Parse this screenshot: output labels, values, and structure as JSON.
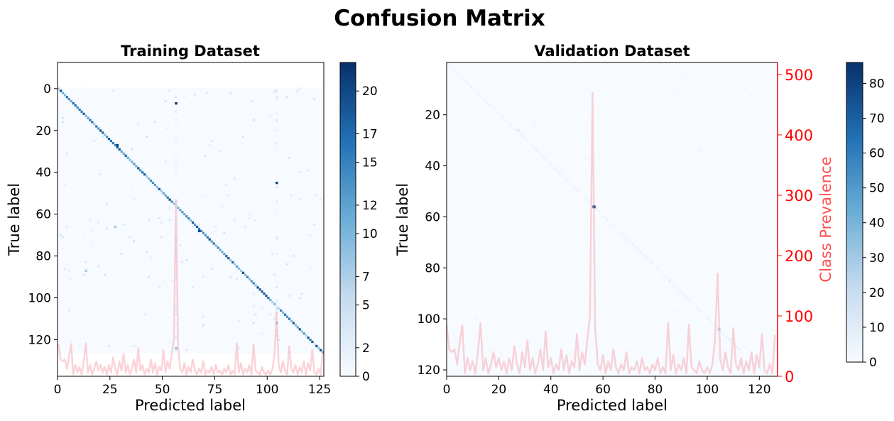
{
  "title": "Confusion Matrix",
  "colors": {
    "cmap_low": "#f7fbff",
    "cmap_high": "#08306b",
    "prevalence_line": "#f7a8b2",
    "prevalence_axis": "#ff0000"
  },
  "chart_data": [
    {
      "type": "heatmap",
      "title": "Training Dataset",
      "xlabel": "Predicted label",
      "ylabel": "True label",
      "n_classes": 127,
      "xlim": [
        0,
        127
      ],
      "ylim": [
        138,
        -12
      ],
      "xticks": [
        0,
        25,
        50,
        75,
        100,
        125
      ],
      "yticks": [
        0,
        20,
        40,
        60,
        80,
        100,
        120
      ],
      "colorbar": {
        "min": 0,
        "max": 22,
        "ticks": [
          0,
          2,
          5,
          7,
          10,
          12,
          15,
          17,
          20
        ]
      },
      "notable_cells": [
        {
          "true": 7,
          "pred": 56,
          "value": 22
        },
        {
          "true": 27,
          "pred": 28,
          "value": 21
        },
        {
          "true": 45,
          "pred": 104,
          "value": 21
        },
        {
          "true": 68,
          "pred": 67,
          "value": 20
        },
        {
          "true": 87,
          "pred": 13,
          "value": 8
        },
        {
          "true": 66,
          "pred": 27,
          "value": 8
        },
        {
          "true": 124,
          "pred": 56,
          "value": 9
        },
        {
          "true": 112,
          "pred": 104,
          "value": 10
        }
      ],
      "prevalence_overlay": true
    },
    {
      "type": "heatmap",
      "title": "Validation Dataset",
      "xlabel": "Predicted label",
      "ylabel": "True label",
      "secondary_ylabel": "Class Prevalence",
      "n_classes": 123,
      "xlim": [
        0,
        127
      ],
      "ylim": [
        123,
        0
      ],
      "xticks": [
        0,
        20,
        40,
        60,
        80,
        100,
        120
      ],
      "yticks": [
        20,
        40,
        60,
        80,
        100,
        120
      ],
      "secondary_yticks": [
        0,
        100,
        200,
        300,
        400,
        500
      ],
      "secondary_ylim": [
        0,
        520
      ],
      "colorbar": {
        "min": 0,
        "max": 86,
        "ticks": [
          0,
          10,
          20,
          30,
          40,
          50,
          60,
          70,
          80
        ]
      },
      "notable_cells": [
        {
          "true": 56,
          "pred": 56,
          "value": 86
        },
        {
          "true": 104,
          "pred": 104,
          "value": 25
        },
        {
          "true": 26,
          "pred": 27,
          "value": 8
        },
        {
          "true": 85,
          "pred": 85,
          "value": 8
        }
      ],
      "prevalence": [
        {
          "x": 0,
          "y": 85
        },
        {
          "x": 1,
          "y": 45
        },
        {
          "x": 2,
          "y": 40
        },
        {
          "x": 3,
          "y": 45
        },
        {
          "x": 4,
          "y": 20
        },
        {
          "x": 5,
          "y": 55
        },
        {
          "x": 6,
          "y": 85
        },
        {
          "x": 7,
          "y": 5
        },
        {
          "x": 8,
          "y": 30
        },
        {
          "x": 9,
          "y": 10
        },
        {
          "x": 10,
          "y": 25
        },
        {
          "x": 11,
          "y": 5
        },
        {
          "x": 12,
          "y": 40
        },
        {
          "x": 13,
          "y": 88
        },
        {
          "x": 14,
          "y": 10
        },
        {
          "x": 15,
          "y": 30
        },
        {
          "x": 16,
          "y": 5
        },
        {
          "x": 17,
          "y": 20
        },
        {
          "x": 18,
          "y": 40
        },
        {
          "x": 19,
          "y": 15
        },
        {
          "x": 20,
          "y": 30
        },
        {
          "x": 21,
          "y": 10
        },
        {
          "x": 22,
          "y": 25
        },
        {
          "x": 23,
          "y": 5
        },
        {
          "x": 24,
          "y": 30
        },
        {
          "x": 25,
          "y": 10
        },
        {
          "x": 26,
          "y": 50
        },
        {
          "x": 27,
          "y": 20
        },
        {
          "x": 28,
          "y": 5
        },
        {
          "x": 29,
          "y": 40
        },
        {
          "x": 30,
          "y": 15
        },
        {
          "x": 31,
          "y": 60
        },
        {
          "x": 32,
          "y": 10
        },
        {
          "x": 33,
          "y": 30
        },
        {
          "x": 34,
          "y": 5
        },
        {
          "x": 35,
          "y": 20
        },
        {
          "x": 36,
          "y": 45
        },
        {
          "x": 37,
          "y": 10
        },
        {
          "x": 38,
          "y": 75
        },
        {
          "x": 39,
          "y": 15
        },
        {
          "x": 40,
          "y": 30
        },
        {
          "x": 41,
          "y": 5
        },
        {
          "x": 42,
          "y": 20
        },
        {
          "x": 43,
          "y": 10
        },
        {
          "x": 44,
          "y": 45
        },
        {
          "x": 45,
          "y": 10
        },
        {
          "x": 46,
          "y": 35
        },
        {
          "x": 47,
          "y": 5
        },
        {
          "x": 48,
          "y": 25
        },
        {
          "x": 49,
          "y": 15
        },
        {
          "x": 50,
          "y": 70
        },
        {
          "x": 51,
          "y": 10
        },
        {
          "x": 52,
          "y": 40
        },
        {
          "x": 53,
          "y": 20
        },
        {
          "x": 54,
          "y": 60
        },
        {
          "x": 55,
          "y": 100
        },
        {
          "x": 56,
          "y": 470
        },
        {
          "x": 57,
          "y": 80
        },
        {
          "x": 58,
          "y": 20
        },
        {
          "x": 59,
          "y": 10
        },
        {
          "x": 60,
          "y": 35
        },
        {
          "x": 61,
          "y": 5
        },
        {
          "x": 62,
          "y": 25
        },
        {
          "x": 63,
          "y": 10
        },
        {
          "x": 64,
          "y": 45
        },
        {
          "x": 65,
          "y": 15
        },
        {
          "x": 66,
          "y": 5
        },
        {
          "x": 67,
          "y": 20
        },
        {
          "x": 68,
          "y": 10
        },
        {
          "x": 69,
          "y": 40
        },
        {
          "x": 70,
          "y": 5
        },
        {
          "x": 71,
          "y": 15
        },
        {
          "x": 72,
          "y": 10
        },
        {
          "x": 73,
          "y": 25
        },
        {
          "x": 74,
          "y": 5
        },
        {
          "x": 75,
          "y": 30
        },
        {
          "x": 76,
          "y": 10
        },
        {
          "x": 77,
          "y": 15
        },
        {
          "x": 78,
          "y": 5
        },
        {
          "x": 79,
          "y": 20
        },
        {
          "x": 80,
          "y": 10
        },
        {
          "x": 81,
          "y": 30
        },
        {
          "x": 82,
          "y": 5
        },
        {
          "x": 83,
          "y": 15
        },
        {
          "x": 84,
          "y": 5
        },
        {
          "x": 85,
          "y": 88
        },
        {
          "x": 86,
          "y": 10
        },
        {
          "x": 87,
          "y": 35
        },
        {
          "x": 88,
          "y": 5
        },
        {
          "x": 89,
          "y": 20
        },
        {
          "x": 90,
          "y": 10
        },
        {
          "x": 91,
          "y": 30
        },
        {
          "x": 92,
          "y": 5
        },
        {
          "x": 93,
          "y": 85
        },
        {
          "x": 94,
          "y": 15
        },
        {
          "x": 95,
          "y": 10
        },
        {
          "x": 96,
          "y": 5
        },
        {
          "x": 97,
          "y": 25
        },
        {
          "x": 98,
          "y": 10
        },
        {
          "x": 99,
          "y": 5
        },
        {
          "x": 100,
          "y": 15
        },
        {
          "x": 101,
          "y": 5
        },
        {
          "x": 102,
          "y": 20
        },
        {
          "x": 103,
          "y": 60
        },
        {
          "x": 104,
          "y": 170
        },
        {
          "x": 105,
          "y": 30
        },
        {
          "x": 106,
          "y": 10
        },
        {
          "x": 107,
          "y": 40
        },
        {
          "x": 108,
          "y": 15
        },
        {
          "x": 109,
          "y": 5
        },
        {
          "x": 110,
          "y": 80
        },
        {
          "x": 111,
          "y": 20
        },
        {
          "x": 112,
          "y": 10
        },
        {
          "x": 113,
          "y": 30
        },
        {
          "x": 114,
          "y": 5
        },
        {
          "x": 115,
          "y": 25
        },
        {
          "x": 116,
          "y": 10
        },
        {
          "x": 117,
          "y": 40
        },
        {
          "x": 118,
          "y": 5
        },
        {
          "x": 119,
          "y": 35
        },
        {
          "x": 120,
          "y": 15
        },
        {
          "x": 121,
          "y": 70
        },
        {
          "x": 122,
          "y": 10
        },
        {
          "x": 123,
          "y": 5
        },
        {
          "x": 124,
          "y": 20
        },
        {
          "x": 125,
          "y": 5
        },
        {
          "x": 126,
          "y": 68
        }
      ]
    }
  ]
}
